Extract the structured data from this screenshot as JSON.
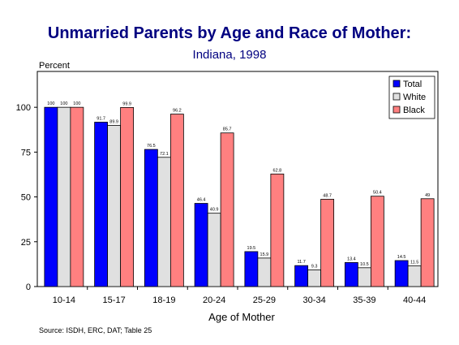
{
  "chart_data": {
    "type": "bar",
    "title": "Unmarried Parents by Age and Race of Mother:",
    "subtitle": "Indiana, 1998",
    "ylabel": "Percent",
    "xlabel": "Age of Mother",
    "source": "Source:  ISDH, ERC, DAT; Table 25",
    "categories": [
      "10-14",
      "15-17",
      "18-19",
      "20-24",
      "25-29",
      "30-34",
      "35-39",
      "40-44"
    ],
    "ylim": [
      0,
      120
    ],
    "yticks": [
      0,
      25,
      50,
      75,
      100
    ],
    "legend_position": "top-right",
    "series": [
      {
        "name": "Total",
        "color": "#0000ff",
        "values": [
          100,
          91.7,
          76.5,
          46.4,
          19.5,
          11.7,
          13.4,
          14.5
        ],
        "labels": [
          "100",
          "91.7",
          "76.5",
          "46.4",
          "19.5",
          "11.7",
          "13.4",
          "14.5"
        ]
      },
      {
        "name": "White",
        "color": "#e0e0e0",
        "values": [
          100,
          89.9,
          72.1,
          40.9,
          15.9,
          9.3,
          10.5,
          11.5
        ],
        "labels": [
          "100",
          "89.9",
          "72.1",
          "40.9",
          "15.9",
          "9.3",
          "10.5",
          "11.5"
        ]
      },
      {
        "name": "Black",
        "color": "#ff8080",
        "values": [
          100,
          99.9,
          96.2,
          85.7,
          62.8,
          48.7,
          50.4,
          49
        ],
        "labels": [
          "100",
          "99.9",
          "96.2",
          "85.7",
          "62.8",
          "48.7",
          "50.4",
          "49"
        ]
      }
    ]
  }
}
